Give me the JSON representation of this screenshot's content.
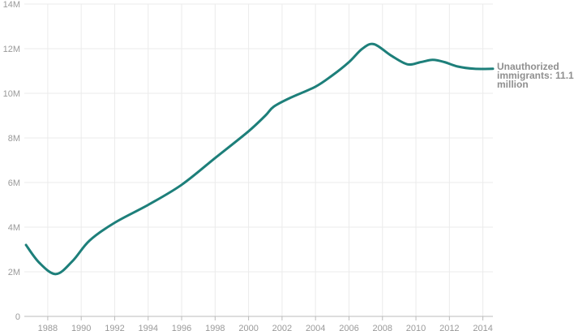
{
  "chart_data": {
    "type": "line",
    "title": "",
    "xlabel": "",
    "ylabel": "",
    "xlim": [
      1986.6,
      2014.6
    ],
    "ylim": [
      0,
      14
    ],
    "x_ticks": [
      1988,
      1990,
      1992,
      1994,
      1996,
      1998,
      2000,
      2002,
      2004,
      2006,
      2008,
      2010,
      2012,
      2014
    ],
    "x_tick_labels": [
      "1988",
      "1990",
      "1992",
      "1994",
      "1996",
      "1998",
      "2000",
      "2002",
      "2004",
      "2006",
      "2008",
      "2010",
      "2012",
      "2014"
    ],
    "y_ticks": [
      0,
      2,
      4,
      6,
      8,
      10,
      12,
      14
    ],
    "y_tick_labels": [
      "0",
      "2M",
      "4M",
      "6M",
      "8M",
      "10M",
      "12M",
      "14M"
    ],
    "grid": true,
    "series": [
      {
        "name": "Unauthorized immigrants",
        "color": "#1d7f7a",
        "x": [
          1986.7,
          1987.5,
          1988.5,
          1989.5,
          1990.5,
          1992,
          1994,
          1996,
          1998,
          2000,
          2001,
          2001.5,
          2002.5,
          2004,
          2005,
          2006,
          2006.8,
          2007.5,
          2008.5,
          2009.5,
          2010.3,
          2011,
          2011.7,
          2012.5,
          2013.5,
          2014.6
        ],
        "values": [
          3.2,
          2.4,
          1.9,
          2.5,
          3.4,
          4.2,
          5.0,
          5.9,
          7.1,
          8.3,
          9.0,
          9.4,
          9.8,
          10.3,
          10.8,
          11.4,
          12.0,
          12.2,
          11.7,
          11.3,
          11.4,
          11.5,
          11.4,
          11.2,
          11.1,
          11.1
        ]
      }
    ],
    "annotations": [
      "Unauthorized immigrants: 11.1 million"
    ]
  }
}
